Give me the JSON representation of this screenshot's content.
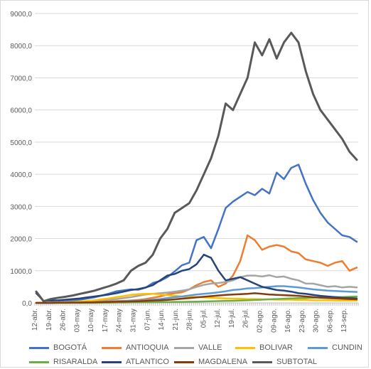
{
  "chart_data": {
    "type": "line",
    "title": "",
    "xlabel": "",
    "ylabel": "",
    "ylim": [
      0,
      9000
    ],
    "y_ticks": [
      "0,0",
      "1000,0",
      "2000,0",
      "3000,0",
      "4000,0",
      "5000,0",
      "6000,0",
      "7000,0",
      "8000,0",
      "9000,0"
    ],
    "x_ticks": [
      "12-abr.",
      "19-abr.",
      "26-abr.",
      "03-may",
      "10-may",
      "17-may",
      "24-may",
      "31-may",
      "07-jun.",
      "14-jun.",
      "21-jun.",
      "28-jun.",
      "05-jul.",
      "12-jul.",
      "19-jul.",
      "26-jul.",
      "02-ago.",
      "09-ago.",
      "16-ago.",
      "23-ago.",
      "30-ago.",
      "06-sep.",
      "13-sep."
    ],
    "grid": "horizontal",
    "legend_position": "bottom",
    "series": [
      {
        "name": "BOGOTÁ",
        "color": "#4472C4",
        "values": [
          0,
          0,
          10,
          25,
          45,
          70,
          100,
          135,
          175,
          230,
          290,
          360,
          390,
          420,
          410,
          470,
          620,
          680,
          800,
          980,
          1170,
          1250,
          1950,
          2050,
          1700,
          2300,
          2950,
          3150,
          3300,
          3450,
          3350,
          3550,
          3400,
          4050,
          3850,
          4200,
          4300,
          3700,
          3200,
          2800,
          2500,
          2300,
          2100,
          2050,
          1900
        ]
      },
      {
        "name": "ANTIOQUIA",
        "color": "#ED7D31",
        "values": [
          0,
          0,
          5,
          10,
          15,
          20,
          25,
          30,
          35,
          40,
          45,
          55,
          65,
          75,
          90,
          120,
          160,
          200,
          260,
          300,
          330,
          420,
          550,
          650,
          700,
          500,
          600,
          850,
          1300,
          2100,
          1950,
          1650,
          1750,
          1800,
          1750,
          1600,
          1550,
          1350,
          1300,
          1250,
          1150,
          1250,
          1300,
          1000,
          1100
        ]
      },
      {
        "name": "VALLE",
        "color": "#A5A5A5",
        "values": [
          0,
          0,
          5,
          10,
          15,
          20,
          30,
          45,
          60,
          80,
          100,
          120,
          150,
          180,
          220,
          260,
          280,
          300,
          320,
          350,
          380,
          420,
          500,
          560,
          600,
          620,
          650,
          700,
          800,
          850,
          850,
          820,
          860,
          800,
          820,
          750,
          700,
          600,
          600,
          550,
          500,
          520,
          480,
          500,
          480
        ]
      },
      {
        "name": "BOLIVAR",
        "color": "#FFC000",
        "values": [
          0,
          0,
          5,
          10,
          20,
          30,
          45,
          60,
          80,
          110,
          140,
          180,
          210,
          250,
          270,
          280,
          280,
          260,
          240,
          220,
          200,
          190,
          180,
          170,
          160,
          150,
          140,
          130,
          130,
          120,
          120,
          110,
          110,
          100,
          100,
          100,
          90,
          90,
          80,
          80,
          80,
          70,
          70,
          70,
          70
        ]
      },
      {
        "name": "CUNDIN",
        "color": "#5B9BD5",
        "values": [
          0,
          0,
          0,
          5,
          5,
          10,
          10,
          15,
          20,
          25,
          30,
          40,
          50,
          60,
          70,
          80,
          100,
          120,
          150,
          180,
          200,
          230,
          260,
          280,
          300,
          330,
          360,
          400,
          420,
          450,
          460,
          480,
          500,
          520,
          520,
          500,
          480,
          450,
          420,
          400,
          380,
          370,
          360,
          350,
          340
        ]
      },
      {
        "name": "RISARALDA",
        "color": "#70AD47",
        "values": [
          0,
          0,
          0,
          0,
          0,
          0,
          0,
          0,
          0,
          5,
          5,
          10,
          10,
          15,
          15,
          20,
          20,
          25,
          25,
          30,
          30,
          35,
          40,
          45,
          50,
          55,
          60,
          65,
          70,
          80,
          90,
          100,
          110,
          120,
          130,
          140,
          150,
          150,
          160,
          170,
          170,
          180,
          180,
          190,
          200
        ]
      },
      {
        "name": "ATLANTICO",
        "color": "#264478",
        "values": [
          300,
          60,
          70,
          80,
          100,
          120,
          140,
          170,
          200,
          230,
          260,
          300,
          350,
          400,
          430,
          480,
          550,
          700,
          850,
          900,
          1000,
          1050,
          1200,
          1500,
          1400,
          1000,
          700,
          750,
          800,
          700,
          600,
          500,
          450,
          400,
          380,
          350,
          300,
          280,
          250,
          220,
          200,
          180,
          160,
          150,
          140
        ]
      },
      {
        "name": "MAGDALENA",
        "color": "#843C0C",
        "values": [
          0,
          0,
          0,
          5,
          5,
          10,
          10,
          15,
          20,
          25,
          30,
          35,
          40,
          45,
          50,
          60,
          70,
          80,
          90,
          110,
          130,
          150,
          170,
          190,
          210,
          230,
          250,
          260,
          270,
          280,
          300,
          280,
          260,
          250,
          240,
          230,
          220,
          200,
          180,
          160,
          150,
          140,
          130,
          120,
          110
        ]
      },
      {
        "name": "SUBTOTAL",
        "color": "#595959",
        "values": [
          350,
          50,
          120,
          160,
          190,
          230,
          280,
          330,
          380,
          450,
          520,
          600,
          700,
          1000,
          1150,
          1250,
          1500,
          2000,
          2300,
          2800,
          2950,
          3100,
          3500,
          4000,
          4500,
          5200,
          6200,
          6000,
          6500,
          7000,
          8100,
          7700,
          8200,
          7600,
          8100,
          8400,
          8100,
          7200,
          6500,
          6000,
          5700,
          5400,
          5100,
          4700,
          4450
        ]
      }
    ]
  }
}
